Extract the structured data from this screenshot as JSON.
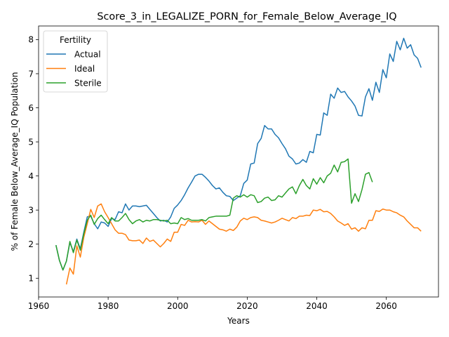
{
  "chart_data": {
    "type": "line",
    "title": "Score_3_in_LEGALIZE_PORN_for_Female_Below_Average_IQ",
    "xlabel": "Years",
    "ylabel": "% of Female Below_Average_IQ Population",
    "xlim": [
      1960,
      2075
    ],
    "ylim": [
      0.45,
      8.4
    ],
    "xticks": [
      1960,
      1980,
      2000,
      2020,
      2040,
      2060
    ],
    "yticks": [
      1,
      2,
      3,
      4,
      5,
      6,
      7,
      8
    ],
    "grid": false,
    "legend": {
      "title": "Fertility",
      "placement": "top-left"
    },
    "series": [
      {
        "name": "Actual",
        "color": "#1f77b4",
        "x": [
          1965,
          1966,
          1967,
          1968,
          1969,
          1970,
          1971,
          1972,
          1973,
          1974,
          1975,
          1976,
          1977,
          1978,
          1979,
          1980,
          1981,
          1982,
          1983,
          1984,
          1985,
          1986,
          1987,
          1988,
          1989,
          1990,
          1991,
          1992,
          1993,
          1994,
          1995,
          1996,
          1997,
          1998,
          1999,
          2000,
          2001,
          2002,
          2003,
          2004,
          2005,
          2006,
          2007,
          2008,
          2009,
          2010,
          2011,
          2012,
          2013,
          2014,
          2015,
          2016,
          2017,
          2018,
          2019,
          2020,
          2021,
          2022,
          2023,
          2024,
          2025,
          2026,
          2027,
          2028,
          2029,
          2030,
          2031,
          2032,
          2033,
          2034,
          2035,
          2036,
          2037,
          2038,
          2039,
          2040,
          2041,
          2042,
          2043,
          2044,
          2045,
          2046,
          2047,
          2048,
          2049,
          2050,
          2051,
          2052,
          2053,
          2054,
          2055,
          2056,
          2057,
          2058,
          2059,
          2060,
          2061,
          2062,
          2063,
          2064,
          2065,
          2066,
          2067,
          2068,
          2069,
          2070
        ],
        "values": [
          1.97,
          1.52,
          1.24,
          1.5,
          2.05,
          1.78,
          2.15,
          1.86,
          2.35,
          2.8,
          2.82,
          2.6,
          2.45,
          2.65,
          2.62,
          2.52,
          2.75,
          2.72,
          2.95,
          2.92,
          3.18,
          3.0,
          3.12,
          3.12,
          3.1,
          3.12,
          3.14,
          3.02,
          2.9,
          2.78,
          2.68,
          2.7,
          2.65,
          2.8,
          3.05,
          3.15,
          3.28,
          3.45,
          3.65,
          3.82,
          4.0,
          4.05,
          4.05,
          3.96,
          3.85,
          3.72,
          3.62,
          3.65,
          3.52,
          3.42,
          3.4,
          3.28,
          3.35,
          3.42,
          3.78,
          3.88,
          4.35,
          4.38,
          4.95,
          5.1,
          5.48,
          5.38,
          5.38,
          5.22,
          5.12,
          4.95,
          4.8,
          4.58,
          4.5,
          4.35,
          4.38,
          4.48,
          4.4,
          4.72,
          4.68,
          5.22,
          5.2,
          5.85,
          5.78,
          6.4,
          6.28,
          6.58,
          6.45,
          6.48,
          6.32,
          6.2,
          6.05,
          5.78,
          5.76,
          6.32,
          6.56,
          6.22,
          6.75,
          6.45,
          7.12,
          6.88,
          7.58,
          7.36,
          7.95,
          7.7,
          8.04,
          7.75,
          7.85,
          7.55,
          7.45,
          7.18
        ]
      },
      {
        "name": "Ideal",
        "color": "#ff7f0e",
        "x": [
          1968,
          1969,
          1970,
          1971,
          1972,
          1973,
          1974,
          1975,
          1976,
          1977,
          1978,
          1979,
          1980,
          1981,
          1982,
          1983,
          1984,
          1985,
          1986,
          1987,
          1988,
          1989,
          1990,
          1991,
          1992,
          1993,
          1994,
          1995,
          1996,
          1997,
          1998,
          1999,
          2000,
          2001,
          2002,
          2003,
          2004,
          2005,
          2006,
          2007,
          2008,
          2009,
          2010,
          2011,
          2012,
          2013,
          2014,
          2015,
          2016,
          2017,
          2018,
          2019,
          2020,
          2021,
          2022,
          2023,
          2024,
          2025,
          2026,
          2027,
          2028,
          2029,
          2030,
          2031,
          2032,
          2033,
          2034,
          2035,
          2036,
          2037,
          2038,
          2039,
          2040,
          2041,
          2042,
          2043,
          2044,
          2045,
          2046,
          2047,
          2048,
          2049,
          2050,
          2051,
          2052,
          2053,
          2054,
          2055,
          2056,
          2057,
          2058,
          2059,
          2060,
          2061,
          2062,
          2063,
          2064,
          2065,
          2066,
          2067,
          2068,
          2069,
          2070
        ],
        "values": [
          0.82,
          1.3,
          1.12,
          1.95,
          1.62,
          2.2,
          2.6,
          3.02,
          2.78,
          3.12,
          3.18,
          2.95,
          2.78,
          2.6,
          2.42,
          2.32,
          2.32,
          2.28,
          2.12,
          2.1,
          2.1,
          2.12,
          2.02,
          2.18,
          2.08,
          2.12,
          2.02,
          1.92,
          2.02,
          2.15,
          2.08,
          2.35,
          2.35,
          2.58,
          2.55,
          2.7,
          2.65,
          2.66,
          2.65,
          2.7,
          2.58,
          2.68,
          2.6,
          2.52,
          2.44,
          2.42,
          2.38,
          2.44,
          2.4,
          2.5,
          2.68,
          2.76,
          2.72,
          2.78,
          2.8,
          2.78,
          2.7,
          2.68,
          2.65,
          2.62,
          2.65,
          2.7,
          2.76,
          2.72,
          2.68,
          2.78,
          2.75,
          2.82,
          2.82,
          2.85,
          2.84,
          3.0,
          2.98,
          3.02,
          2.95,
          2.96,
          2.9,
          2.8,
          2.68,
          2.62,
          2.55,
          2.6,
          2.44,
          2.48,
          2.38,
          2.48,
          2.45,
          2.7,
          2.7,
          2.98,
          2.96,
          3.03,
          3.0,
          3.0,
          2.95,
          2.92,
          2.85,
          2.8,
          2.68,
          2.58,
          2.48,
          2.48,
          2.38
        ]
      },
      {
        "name": "Sterile",
        "color": "#2ca02c",
        "x": [
          1965,
          1966,
          1967,
          1968,
          1969,
          1970,
          1971,
          1972,
          1973,
          1974,
          1975,
          1976,
          1977,
          1978,
          1979,
          1980,
          1981,
          1982,
          1983,
          1984,
          1985,
          1986,
          1987,
          1988,
          1989,
          1990,
          1991,
          1992,
          1993,
          1994,
          1995,
          1996,
          1997,
          1998,
          1999,
          2000,
          2001,
          2002,
          2003,
          2004,
          2005,
          2006,
          2007,
          2008,
          2009,
          2010,
          2011,
          2012,
          2013,
          2014,
          2015,
          2016,
          2017,
          2018,
          2019,
          2020,
          2021,
          2022,
          2023,
          2024,
          2025,
          2026,
          2027,
          2028,
          2029,
          2030,
          2031,
          2032,
          2033,
          2034,
          2035,
          2036,
          2037,
          2038,
          2039,
          2040,
          2041,
          2042,
          2043,
          2044,
          2045,
          2046,
          2047,
          2048,
          2049,
          2050,
          2051,
          2052,
          2053,
          2054,
          2055,
          2056
        ],
        "values": [
          1.97,
          1.52,
          1.24,
          1.5,
          2.08,
          1.75,
          2.12,
          1.82,
          2.3,
          2.7,
          2.85,
          2.58,
          2.75,
          2.85,
          2.72,
          2.6,
          2.78,
          2.68,
          2.68,
          2.78,
          2.9,
          2.72,
          2.6,
          2.68,
          2.72,
          2.65,
          2.7,
          2.68,
          2.72,
          2.72,
          2.7,
          2.68,
          2.7,
          2.6,
          2.62,
          2.6,
          2.78,
          2.72,
          2.75,
          2.7,
          2.7,
          2.7,
          2.72,
          2.68,
          2.78,
          2.8,
          2.82,
          2.82,
          2.82,
          2.82,
          2.85,
          3.35,
          3.42,
          3.38,
          3.45,
          3.38,
          3.45,
          3.42,
          3.22,
          3.25,
          3.35,
          3.38,
          3.28,
          3.3,
          3.42,
          3.38,
          3.5,
          3.62,
          3.68,
          3.48,
          3.72,
          3.9,
          3.72,
          3.62,
          3.92,
          3.76,
          3.95,
          3.8,
          4.0,
          4.08,
          4.32,
          4.12,
          4.4,
          4.42,
          4.5,
          3.2,
          3.48,
          3.25,
          3.6,
          4.05,
          4.1,
          3.82
        ]
      }
    ]
  }
}
